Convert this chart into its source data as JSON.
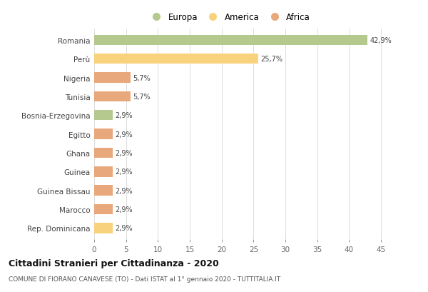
{
  "categories": [
    "Romania",
    "Perù",
    "Nigeria",
    "Tunisia",
    "Bosnia-Erzegovina",
    "Egitto",
    "Ghana",
    "Guinea",
    "Guinea Bissau",
    "Marocco",
    "Rep. Dominicana"
  ],
  "values": [
    42.9,
    25.7,
    5.7,
    5.7,
    2.9,
    2.9,
    2.9,
    2.9,
    2.9,
    2.9,
    2.9
  ],
  "labels": [
    "42,9%",
    "25,7%",
    "5,7%",
    "5,7%",
    "2,9%",
    "2,9%",
    "2,9%",
    "2,9%",
    "2,9%",
    "2,9%",
    "2,9%"
  ],
  "colors": [
    "#b5c98e",
    "#f9d27d",
    "#e8a87c",
    "#e8a87c",
    "#b5c98e",
    "#e8a87c",
    "#e8a87c",
    "#e8a87c",
    "#e8a87c",
    "#e8a87c",
    "#f9d27d"
  ],
  "legend_labels": [
    "Europa",
    "America",
    "Africa"
  ],
  "legend_colors": [
    "#b5c98e",
    "#f9d27d",
    "#e8a87c"
  ],
  "title": "Cittadini Stranieri per Cittadinanza - 2020",
  "subtitle": "COMUNE DI FIORANO CANAVESE (TO) - Dati ISTAT al 1° gennaio 2020 - TUTTITALIA.IT",
  "xlim": [
    0,
    47
  ],
  "xticks": [
    0,
    5,
    10,
    15,
    20,
    25,
    30,
    35,
    40,
    45
  ],
  "background_color": "#ffffff",
  "grid_color": "#dddddd",
  "bar_height": 0.55
}
